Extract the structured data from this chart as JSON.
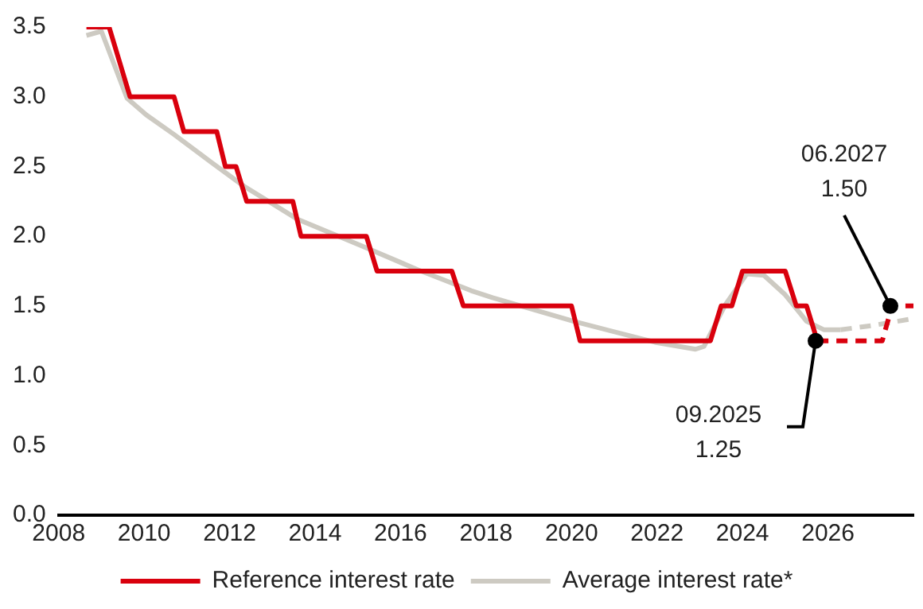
{
  "chart_data": {
    "type": "line",
    "x": [
      2008.65,
      2009.18,
      2009.67,
      2010.7,
      2010.93,
      2011.7,
      2011.9,
      2012.15,
      2012.4,
      2013.48,
      2013.67,
      2015.2,
      2015.45,
      2017.2,
      2017.47,
      2020.0,
      2020.2,
      2023.25,
      2023.5,
      2023.75,
      2024.0,
      2025.0,
      2025.26,
      2025.5,
      2025.75
    ],
    "series": [
      {
        "name": "Reference interest rate",
        "color": "#d9000d",
        "values": [
          3.5,
          3.5,
          3.0,
          3.0,
          2.75,
          2.75,
          2.5,
          2.5,
          2.25,
          2.25,
          2.0,
          2.0,
          1.75,
          1.75,
          1.5,
          1.5,
          1.25,
          1.25,
          1.5,
          1.5,
          1.75,
          1.75,
          1.5,
          1.5,
          1.25
        ]
      },
      {
        "name": "Average interest rate*",
        "color": "#cdcac2",
        "x": [
          2008.65,
          2009.0,
          2009.6,
          2010.05,
          2010.7,
          2011.57,
          2012.33,
          2013.6,
          2015.1,
          2016.4,
          2017.65,
          2018.15,
          2020.05,
          2021.95,
          2022.9,
          2023.1,
          2023.6,
          2024.1,
          2024.5,
          2025.0,
          2025.5,
          2025.9,
          2026.3
        ],
        "values": [
          3.44,
          3.47,
          2.99,
          2.87,
          2.73,
          2.53,
          2.36,
          2.12,
          1.93,
          1.76,
          1.61,
          1.56,
          1.39,
          1.24,
          1.19,
          1.21,
          1.51,
          1.73,
          1.72,
          1.58,
          1.39,
          1.33,
          1.33
        ]
      },
      {
        "color": "#d9000d",
        "line_style": "dashed",
        "x": [
          2025.75,
          2027.27,
          2027.5,
          2028.0
        ],
        "values": [
          1.25,
          1.25,
          1.5,
          1.5
        ]
      },
      {
        "color": "#cdcac2",
        "line_style": "dashed",
        "x": [
          2026.3,
          2027.05,
          2028.0
        ],
        "values": [
          1.33,
          1.36,
          1.41
        ]
      }
    ],
    "xlim": [
      2008,
      2028
    ],
    "xticks": [
      2008,
      2010,
      2012,
      2014,
      2016,
      2018,
      2020,
      2022,
      2024,
      2026
    ],
    "ylim": [
      0,
      3.5
    ],
    "yticks": [
      {
        "value": 0,
        "label": "0.0"
      },
      {
        "value": 0.5,
        "label": "0.5"
      },
      {
        "value": 1,
        "label": "1.0"
      },
      {
        "value": 1.5,
        "label": "1.5"
      },
      {
        "value": 2,
        "label": "2.0"
      },
      {
        "value": 2.5,
        "label": "2.5"
      },
      {
        "value": 3,
        "label": "3.0"
      },
      {
        "value": 3.5,
        "label": "3.5"
      }
    ],
    "grid": false,
    "legend": "bottom",
    "annotations": [
      {
        "text": "09.2025\n1.25",
        "x": 2025.71,
        "y": 1.25
      },
      {
        "text": "06.2027\n1.50",
        "x": 2027.46,
        "y": 1.5
      }
    ]
  }
}
